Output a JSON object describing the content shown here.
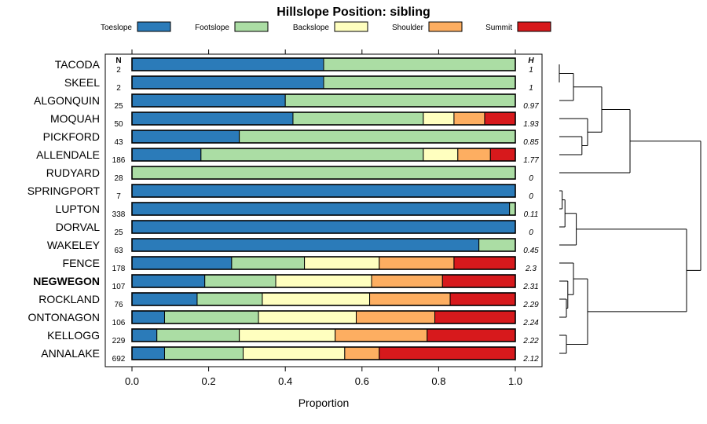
{
  "chart_data": {
    "type": "bar",
    "orientation": "horizontal-stacked",
    "title": "Hillslope Position: sibling",
    "xlabel": "Proportion",
    "ylabel": "",
    "xlim": [
      0,
      1
    ],
    "xticks": [
      0,
      0.2,
      0.4,
      0.6,
      0.8,
      1
    ],
    "xtick_labels": [
      "0.0",
      "0.2",
      "0.4",
      "0.6",
      "0.8",
      "1.0"
    ],
    "n_header": "N",
    "h_header": "H",
    "legend_position": "top",
    "series": [
      {
        "name": "Toeslope",
        "color": "#2B7BB9"
      },
      {
        "name": "Footslope",
        "color": "#ABDDA4"
      },
      {
        "name": "Backslope",
        "color": "#FFFFBF"
      },
      {
        "name": "Shoulder",
        "color": "#FDAE61"
      },
      {
        "name": "Summit",
        "color": "#D7191C"
      }
    ],
    "rows": [
      {
        "name": "TACODA",
        "bold": false,
        "n": "2",
        "h": "1",
        "values": [
          0.5,
          0.5,
          0,
          0,
          0
        ]
      },
      {
        "name": "SKEEL",
        "bold": false,
        "n": "2",
        "h": "1",
        "values": [
          0.5,
          0.5,
          0,
          0,
          0
        ]
      },
      {
        "name": "ALGONQUIN",
        "bold": false,
        "n": "25",
        "h": "0.97",
        "values": [
          0.4,
          0.6,
          0,
          0,
          0
        ]
      },
      {
        "name": "MOQUAH",
        "bold": false,
        "n": "50",
        "h": "1.93",
        "values": [
          0.42,
          0.34,
          0.08,
          0.08,
          0.08
        ]
      },
      {
        "name": "PICKFORD",
        "bold": false,
        "n": "43",
        "h": "0.85",
        "values": [
          0.28,
          0.72,
          0,
          0,
          0
        ]
      },
      {
        "name": "ALLENDALE",
        "bold": false,
        "n": "186",
        "h": "1.77",
        "values": [
          0.18,
          0.58,
          0.09,
          0.085,
          0.065
        ]
      },
      {
        "name": "RUDYARD",
        "bold": false,
        "n": "28",
        "h": "0",
        "values": [
          0,
          1,
          0,
          0,
          0
        ]
      },
      {
        "name": "SPRINGPORT",
        "bold": false,
        "n": "7",
        "h": "0",
        "values": [
          1,
          0,
          0,
          0,
          0
        ]
      },
      {
        "name": "LUPTON",
        "bold": false,
        "n": "338",
        "h": "0.11",
        "values": [
          0.985,
          0.015,
          0,
          0,
          0
        ]
      },
      {
        "name": "DORVAL",
        "bold": false,
        "n": "25",
        "h": "0",
        "values": [
          1,
          0,
          0,
          0,
          0
        ]
      },
      {
        "name": "WAKELEY",
        "bold": false,
        "n": "63",
        "h": "0.45",
        "values": [
          0.905,
          0.095,
          0,
          0,
          0
        ]
      },
      {
        "name": "FENCE",
        "bold": false,
        "n": "178",
        "h": "2.3",
        "values": [
          0.26,
          0.19,
          0.195,
          0.195,
          0.16
        ]
      },
      {
        "name": "NEGWEGON",
        "bold": true,
        "n": "107",
        "h": "2.31",
        "values": [
          0.19,
          0.185,
          0.25,
          0.185,
          0.19
        ]
      },
      {
        "name": "ROCKLAND",
        "bold": false,
        "n": "76",
        "h": "2.29",
        "values": [
          0.17,
          0.17,
          0.28,
          0.21,
          0.17
        ]
      },
      {
        "name": "ONTONAGON",
        "bold": false,
        "n": "106",
        "h": "2.24",
        "values": [
          0.085,
          0.245,
          0.255,
          0.205,
          0.21
        ]
      },
      {
        "name": "KELLOGG",
        "bold": false,
        "n": "229",
        "h": "2.22",
        "values": [
          0.065,
          0.215,
          0.25,
          0.24,
          0.23
        ]
      },
      {
        "name": "ANNALAKE",
        "bold": false,
        "n": "692",
        "h": "2.12",
        "values": [
          0.085,
          0.205,
          0.265,
          0.09,
          0.355
        ]
      }
    ],
    "dendrogram": {
      "merges": [
        [
          0,
          1,
          0
        ],
        [
          -1,
          2,
          0.1
        ],
        [
          4,
          5,
          0.16
        ],
        [
          3,
          -3,
          0.2
        ],
        [
          -2,
          -4,
          0.3
        ],
        [
          -5,
          6,
          0.5
        ],
        [
          7,
          8,
          0.02
        ],
        [
          -7,
          9,
          0.04
        ],
        [
          -8,
          10,
          0.12
        ],
        [
          13,
          14,
          0.05
        ],
        [
          12,
          -10,
          0.06
        ],
        [
          11,
          -11,
          0.1
        ],
        [
          15,
          16,
          0.05
        ],
        [
          -12,
          -13,
          0.2
        ],
        [
          -9,
          -14,
          0.9
        ],
        [
          -6,
          -15,
          1.0
        ]
      ]
    }
  }
}
